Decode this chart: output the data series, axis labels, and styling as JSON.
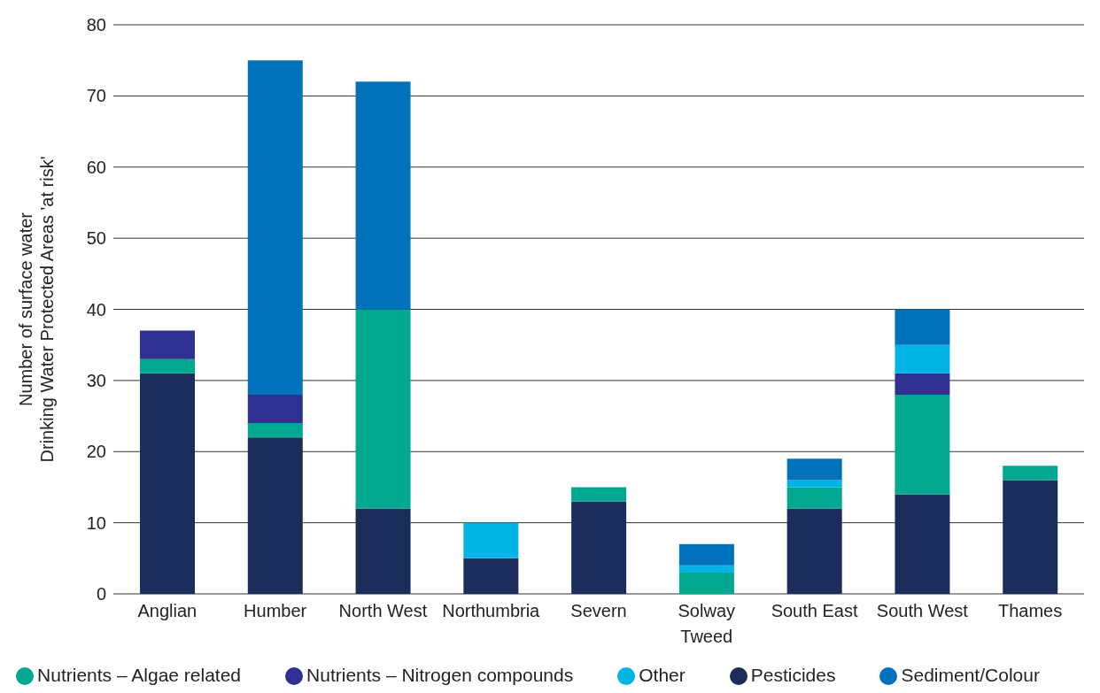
{
  "chart_data": {
    "type": "bar",
    "stacked": true,
    "ylabel": "Number of surface water\nDrinking Water Protected Areas 'at risk'",
    "categories": [
      "Anglian",
      "Humber",
      "North West",
      "Northumbria",
      "Severn",
      "Solway Tweed",
      "South East",
      "South West",
      "Thames"
    ],
    "series": [
      {
        "name": "Pesticides",
        "color": "#1b2d5b",
        "values": [
          31,
          22,
          12,
          5,
          13,
          null,
          12,
          14,
          16
        ]
      },
      {
        "name": "Nutrients – Algae related",
        "color": "#00a88f",
        "values": [
          2,
          2,
          28,
          null,
          2,
          3,
          3,
          14,
          2
        ]
      },
      {
        "name": "Nutrients – Nitrogen compounds",
        "color": "#2e3191",
        "values": [
          4,
          4,
          null,
          null,
          null,
          null,
          null,
          3,
          null
        ]
      },
      {
        "name": "Other",
        "color": "#00b4e6",
        "values": [
          null,
          null,
          null,
          5,
          null,
          1,
          1,
          4,
          null
        ]
      },
      {
        "name": "Sediment/Colour",
        "color": "#0072bc",
        "values": [
          null,
          47,
          32,
          null,
          null,
          3,
          3,
          5,
          null
        ]
      }
    ],
    "ylim": [
      0,
      80
    ],
    "yticks": [
      0,
      10,
      20,
      30,
      40,
      50,
      60,
      70,
      80
    ],
    "grid": "y",
    "legend": "bottom"
  }
}
